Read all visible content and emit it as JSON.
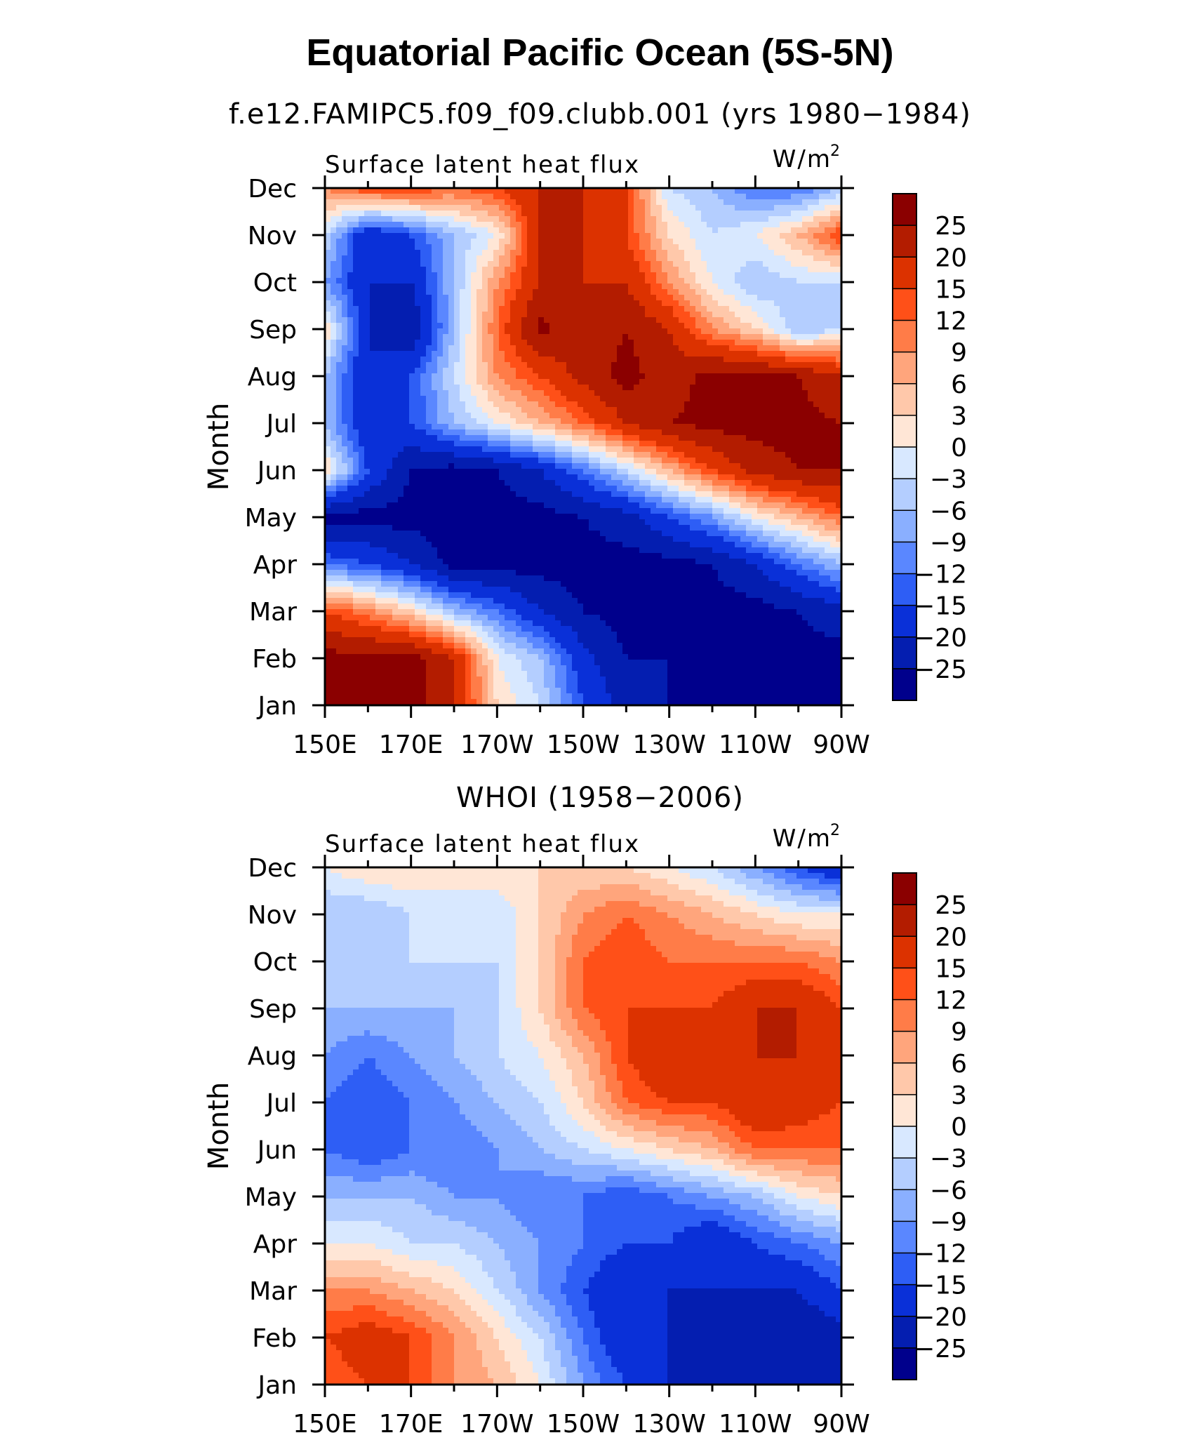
{
  "title": "Equatorial Pacific Ocean (5S-5N)",
  "subtitles": [
    "f.e12.FAMIPC5.f09_f09.clubb.001 (yrs 1980−1984)",
    "WHOI (1958−2006)"
  ],
  "colorbar": {
    "labels": [
      "25",
      "20",
      "15",
      "12",
      "9",
      "6",
      "3",
      "0",
      "−3",
      "−6",
      "−9",
      "−12",
      "−15",
      "−20",
      "−25"
    ],
    "colors": [
      "#8b0000",
      "#b31c00",
      "#dc3200",
      "#ff5018",
      "#ff7c48",
      "#ffa57c",
      "#ffc8aa",
      "#ffe6d6",
      "#d8e8ff",
      "#b4ceff",
      "#8aafff",
      "#5a87ff",
      "#2e5ef5",
      "#0a30d8",
      "#041eb0",
      "#00008c"
    ]
  },
  "chart_data": [
    {
      "type": "heatmap",
      "title": "f.e12.FAMIPC5.f09_f09.clubb.001 (yrs 1980−1984)",
      "left_label": "Surface latent heat flux",
      "units": "W/m²",
      "ylabel": "Month",
      "xlabel": "",
      "x": [
        "150E",
        "170E",
        "170W",
        "150W",
        "130W",
        "110W",
        "90W"
      ],
      "y": [
        "Jan",
        "Feb",
        "Mar",
        "Apr",
        "May",
        "Jun",
        "Jul",
        "Aug",
        "Sep",
        "Oct",
        "Nov",
        "Dec"
      ],
      "values": [
        [
          27,
          27,
          27,
          20,
          3,
          -3,
          -15,
          -22,
          -25,
          -27,
          -27,
          -27,
          -27
        ],
        [
          27,
          27,
          27,
          20,
          0,
          -6,
          -18,
          -25,
          -25,
          -27,
          -27,
          -27,
          -27
        ],
        [
          15,
          10,
          3,
          -6,
          -12,
          -20,
          -25,
          -27,
          -27,
          -27,
          -27,
          -25,
          -22
        ],
        [
          -12,
          -15,
          -20,
          -27,
          -27,
          -27,
          -27,
          -27,
          -27,
          -25,
          -20,
          -12,
          -6
        ],
        [
          -27,
          -27,
          -27,
          -27,
          -27,
          -27,
          -25,
          -22,
          -15,
          -9,
          0,
          6,
          12
        ],
        [
          3,
          -15,
          -25,
          -27,
          -25,
          -20,
          -12,
          -3,
          6,
          15,
          22,
          25,
          25
        ],
        [
          -6,
          -20,
          -15,
          -6,
          0,
          6,
          12,
          20,
          25,
          27,
          27,
          27,
          25
        ],
        [
          -6,
          -20,
          -15,
          -3,
          9,
          15,
          22,
          27,
          22,
          27,
          27,
          25,
          20
        ],
        [
          3,
          -20,
          -25,
          -6,
          12,
          27,
          20,
          25,
          20,
          9,
          3,
          -6,
          -3
        ],
        [
          -9,
          -20,
          -20,
          -6,
          9,
          20,
          20,
          20,
          9,
          0,
          -6,
          -3,
          -3
        ],
        [
          -3,
          -20,
          -15,
          -6,
          0,
          20,
          20,
          15,
          3,
          -3,
          0,
          6,
          15
        ],
        [
          9,
          15,
          15,
          12,
          15,
          20,
          20,
          15,
          -3,
          -6,
          -12,
          -12,
          -6
        ]
      ]
    },
    {
      "type": "heatmap",
      "title": "WHOI (1958−2006)",
      "left_label": "Surface latent heat flux",
      "units": "W/m²",
      "ylabel": "Month",
      "xlabel": "",
      "x": [
        "150E",
        "170E",
        "170W",
        "150W",
        "130W",
        "110W",
        "90W"
      ],
      "y": [
        "Jan",
        "Feb",
        "Mar",
        "Apr",
        "May",
        "Jun",
        "Jul",
        "Aug",
        "Sep",
        "Oct",
        "Nov",
        "Dec"
      ],
      "values": [
        [
          12,
          15,
          15,
          9,
          6,
          0,
          -9,
          -15,
          -20,
          -20,
          -25,
          -25,
          -25
        ],
        [
          15,
          18,
          15,
          9,
          3,
          -3,
          -12,
          -20,
          -20,
          -22,
          -25,
          -25,
          -22
        ],
        [
          9,
          9,
          6,
          3,
          -3,
          -9,
          -15,
          -20,
          -20,
          -20,
          -20,
          -20,
          -15
        ],
        [
          0,
          0,
          -3,
          -3,
          -6,
          -9,
          -12,
          -15,
          -15,
          -20,
          -15,
          -12,
          -9
        ],
        [
          -6,
          -6,
          -6,
          -9,
          -9,
          -12,
          -12,
          -15,
          -12,
          -9,
          -6,
          0,
          3
        ],
        [
          -12,
          -15,
          -12,
          -12,
          -9,
          -6,
          -3,
          0,
          3,
          6,
          12,
          12,
          12
        ],
        [
          -12,
          -15,
          -12,
          -9,
          -6,
          -3,
          3,
          12,
          15,
          15,
          20,
          18,
          15
        ],
        [
          -9,
          -12,
          -9,
          -6,
          -3,
          0,
          6,
          15,
          20,
          15,
          20,
          20,
          15
        ],
        [
          -6,
          -6,
          -6,
          -6,
          -3,
          3,
          12,
          15,
          15,
          15,
          20,
          20,
          15
        ],
        [
          -3,
          -3,
          -3,
          -3,
          -3,
          3,
          12,
          15,
          12,
          12,
          12,
          12,
          9
        ],
        [
          -6,
          -6,
          -3,
          -3,
          -3,
          3,
          9,
          12,
          9,
          6,
          3,
          0,
          0
        ],
        [
          0,
          3,
          3,
          3,
          3,
          3,
          3,
          3,
          0,
          -3,
          -9,
          -15,
          -20
        ]
      ]
    }
  ]
}
